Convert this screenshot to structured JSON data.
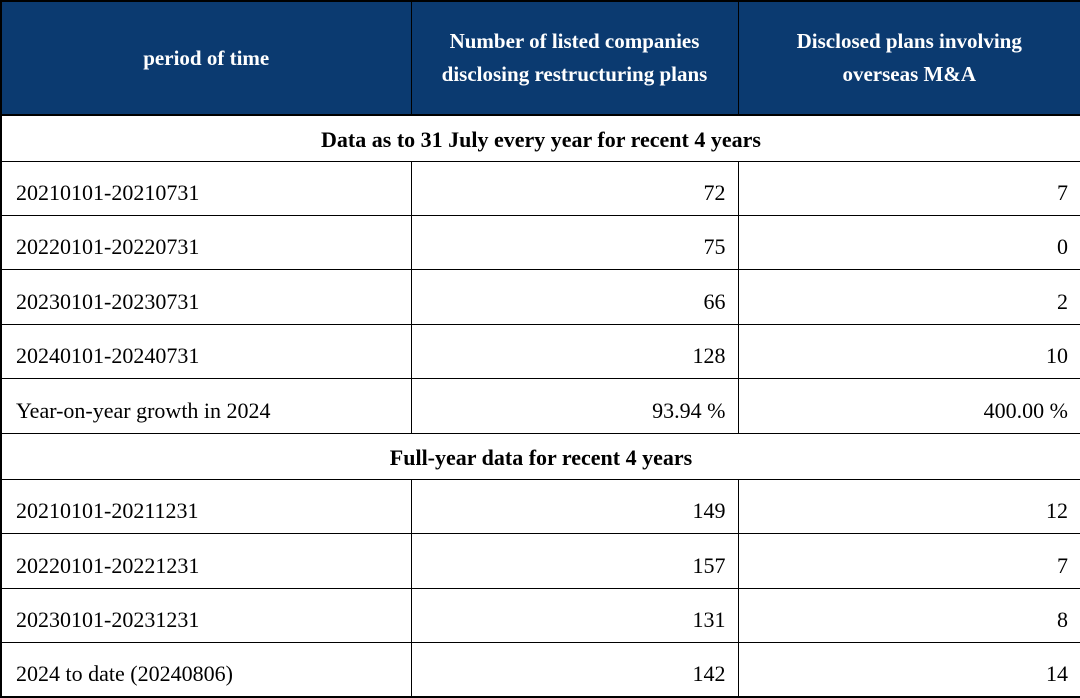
{
  "header": {
    "col_period": "period of time",
    "col_disclosing": "Number of listed companies disclosing restructuring plans",
    "col_overseas": "Disclosed plans involving overseas M&A"
  },
  "sections": [
    {
      "title": "Data as to 31 July every year for recent 4 years",
      "rows": [
        {
          "period": "20210101-20210731",
          "disclosing": "72",
          "overseas": "7"
        },
        {
          "period": "20220101-20220731",
          "disclosing": "75",
          "overseas": "0"
        },
        {
          "period": "20230101-20230731",
          "disclosing": "66",
          "overseas": "2"
        },
        {
          "period": "20240101-20240731",
          "disclosing": "128",
          "overseas": "10"
        },
        {
          "period": "Year-on-year growth in 2024",
          "disclosing": "93.94 %",
          "overseas": "400.00 %"
        }
      ]
    },
    {
      "title": "Full-year data for recent 4 years",
      "rows": [
        {
          "period": "20210101-20211231",
          "disclosing": "149",
          "overseas": "12"
        },
        {
          "period": "20220101-20221231",
          "disclosing": "157",
          "overseas": "7"
        },
        {
          "period": "20230101-20231231",
          "disclosing": "131",
          "overseas": "8"
        },
        {
          "period": "2024 to date (20240806)",
          "disclosing": "142",
          "overseas": "14"
        }
      ]
    }
  ],
  "colors": {
    "header_bg": "#0b3a70",
    "header_text": "#ffffff",
    "body_text": "#000000",
    "border": "#000000"
  },
  "chart_data": {
    "type": "table",
    "columns": [
      "period of time",
      "Number of listed companies disclosing restructuring plans",
      "Disclosed plans involving overseas M&A"
    ],
    "sections": [
      {
        "title": "Data as to 31 July every year for recent 4 years",
        "rows": [
          [
            "20210101-20210731",
            72,
            7
          ],
          [
            "20220101-20220731",
            75,
            0
          ],
          [
            "20230101-20230731",
            66,
            2
          ],
          [
            "20240101-20240731",
            128,
            10
          ],
          [
            "Year-on-year growth in 2024",
            "93.94 %",
            "400.00 %"
          ]
        ]
      },
      {
        "title": "Full-year data for recent 4 years",
        "rows": [
          [
            "20210101-20211231",
            149,
            12
          ],
          [
            "20220101-20221231",
            157,
            7
          ],
          [
            "20230101-20231231",
            131,
            8
          ],
          [
            "2024 to date (20240806)",
            142,
            14
          ]
        ]
      }
    ]
  }
}
